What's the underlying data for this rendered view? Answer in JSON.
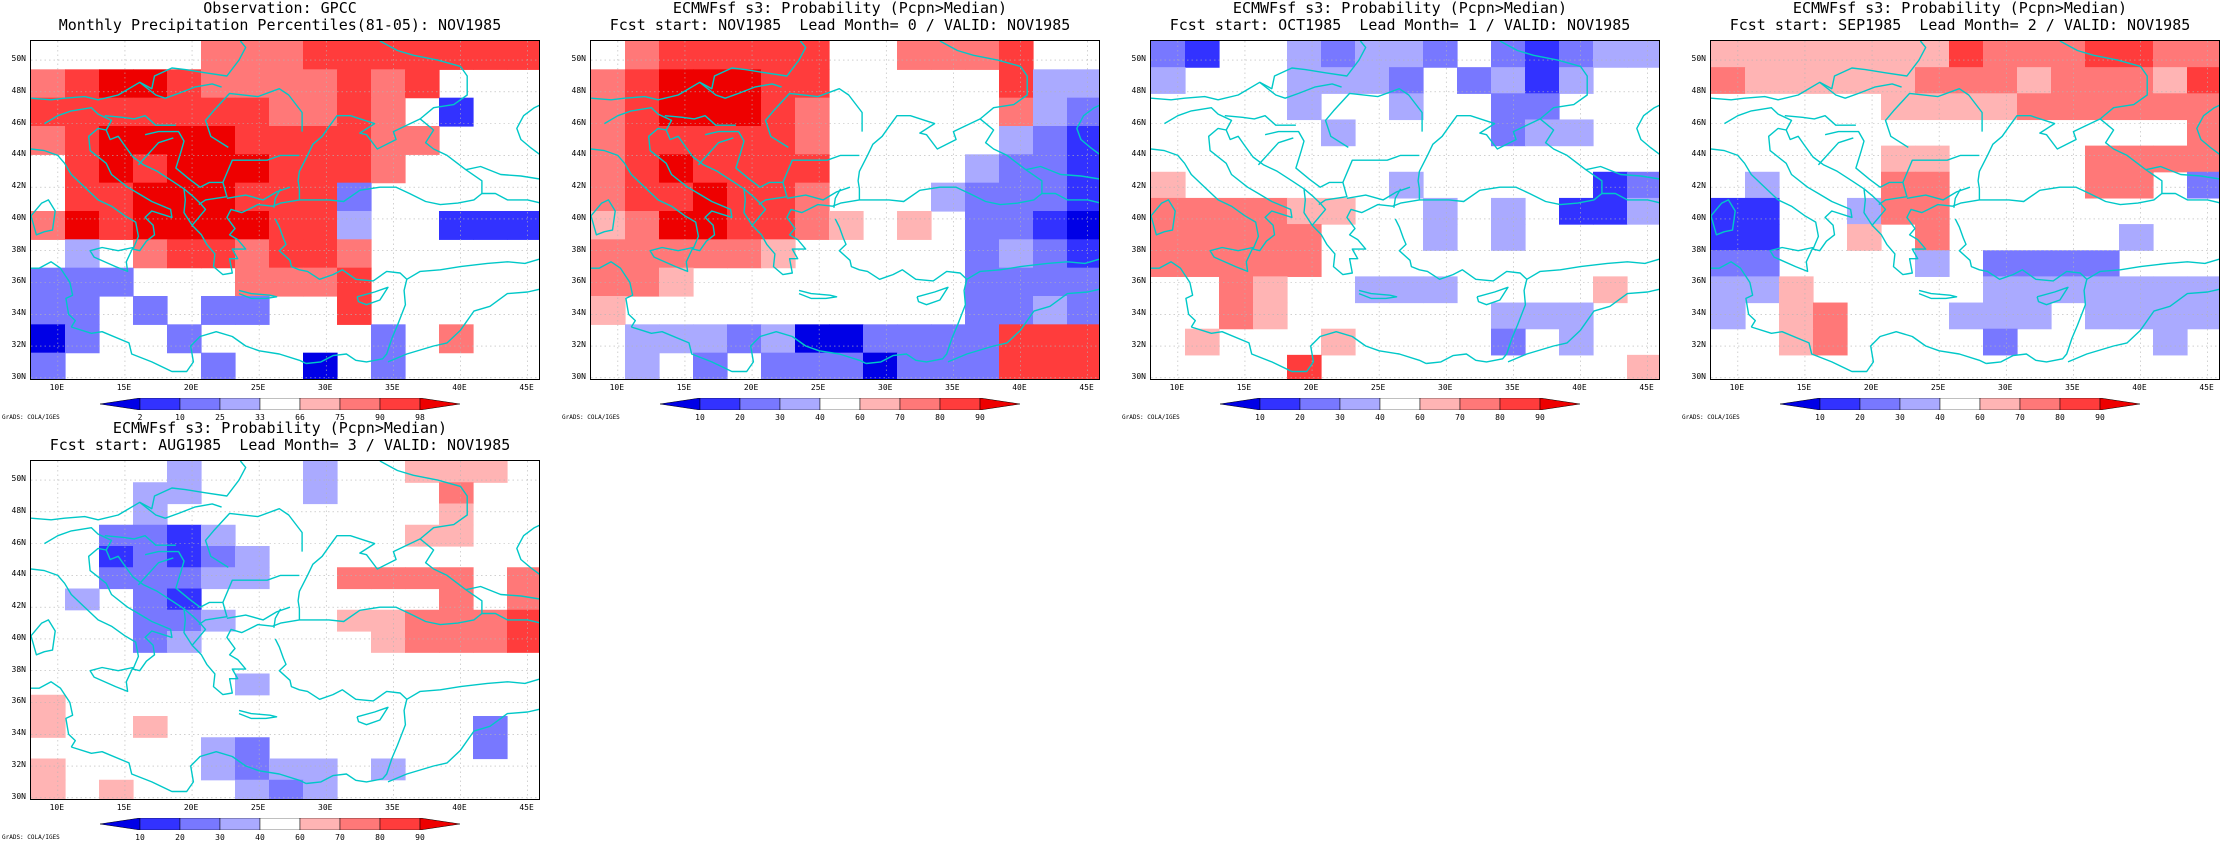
{
  "panels": [
    {
      "title_line1": "Observation: GPCC",
      "title_line2": "Monthly Precipitation Percentiles(81-05): NOV1985",
      "colorbar_labels": [
        "2",
        "10",
        "25",
        "33",
        "66",
        "75",
        "90",
        "98"
      ],
      "grid": [
        [
          0,
          0,
          0,
          0,
          0,
          3,
          3,
          3,
          4,
          4,
          4,
          4,
          4,
          4,
          4
        ],
        [
          3,
          4,
          5,
          5,
          4,
          3,
          3,
          3,
          3,
          4,
          3,
          4,
          0,
          0,
          0
        ],
        [
          4,
          4,
          4,
          4,
          4,
          4,
          4,
          3,
          3,
          4,
          3,
          0,
          -3,
          0,
          0
        ],
        [
          3,
          4,
          5,
          5,
          5,
          5,
          4,
          4,
          4,
          4,
          3,
          3,
          0,
          0,
          0
        ],
        [
          0,
          4,
          5,
          4,
          5,
          5,
          5,
          4,
          4,
          4,
          3,
          0,
          0,
          0,
          0
        ],
        [
          0,
          4,
          4,
          5,
          5,
          5,
          4,
          4,
          4,
          -2,
          0,
          0,
          0,
          0,
          0
        ],
        [
          3,
          5,
          4,
          5,
          5,
          5,
          5,
          4,
          4,
          -1,
          0,
          0,
          -3,
          -3,
          -3
        ],
        [
          0,
          -1,
          0,
          3,
          4,
          4,
          3,
          4,
          4,
          3,
          0,
          0,
          0,
          0,
          0
        ],
        [
          -2,
          -2,
          -2,
          0,
          0,
          0,
          3,
          3,
          3,
          4,
          0,
          0,
          0,
          0,
          0
        ],
        [
          -2,
          -2,
          0,
          -2,
          0,
          -2,
          -2,
          0,
          0,
          4,
          0,
          0,
          0,
          0,
          0
        ],
        [
          -4,
          -2,
          0,
          0,
          -2,
          0,
          0,
          0,
          0,
          0,
          -2,
          0,
          3,
          0,
          0
        ],
        [
          -2,
          0,
          0,
          0,
          0,
          -2,
          0,
          0,
          -4,
          0,
          -2,
          0,
          0,
          0,
          0
        ]
      ]
    },
    {
      "title_line1": "ECMWFsf s3: Probability (Pcpn>Median)",
      "title_line2": "Fcst start: NOV1985  Lead Month= 0 / VALID: NOV1985",
      "colorbar_labels": [
        "10",
        "20",
        "30",
        "40",
        "60",
        "70",
        "80",
        "90"
      ],
      "grid": [
        [
          0,
          3,
          4,
          4,
          4,
          4,
          4,
          0,
          0,
          3,
          3,
          3,
          4,
          0,
          0
        ],
        [
          3,
          4,
          5,
          5,
          5,
          4,
          4,
          0,
          0,
          0,
          0,
          0,
          4,
          -1,
          -1
        ],
        [
          3,
          4,
          5,
          5,
          5,
          4,
          3,
          0,
          0,
          0,
          0,
          0,
          3,
          -1,
          -2
        ],
        [
          3,
          4,
          4,
          4,
          4,
          4,
          3,
          0,
          0,
          0,
          0,
          0,
          -1,
          -2,
          -3
        ],
        [
          3,
          4,
          5,
          4,
          4,
          4,
          4,
          0,
          0,
          0,
          0,
          -1,
          -2,
          -2,
          -3
        ],
        [
          3,
          4,
          4,
          5,
          4,
          4,
          3,
          0,
          0,
          0,
          -1,
          -2,
          -2,
          -2,
          -3
        ],
        [
          2,
          3,
          5,
          5,
          4,
          4,
          3,
          2,
          0,
          2,
          0,
          -2,
          -2,
          -3,
          -4
        ],
        [
          3,
          3,
          3,
          3,
          3,
          2,
          0,
          0,
          0,
          0,
          0,
          -2,
          -1,
          -2,
          -3
        ],
        [
          3,
          3,
          2,
          0,
          0,
          0,
          0,
          0,
          0,
          0,
          0,
          -2,
          -2,
          -2,
          -2
        ],
        [
          2,
          0,
          0,
          0,
          0,
          0,
          0,
          0,
          0,
          0,
          0,
          -2,
          -2,
          -1,
          -2
        ],
        [
          0,
          -1,
          -1,
          -1,
          -2,
          -1,
          -4,
          -4,
          -2,
          -2,
          -2,
          -2,
          4,
          4,
          4
        ],
        [
          0,
          -1,
          0,
          -2,
          0,
          -2,
          -2,
          -2,
          -4,
          -2,
          -2,
          -2,
          4,
          4,
          4
        ]
      ]
    },
    {
      "title_line1": "ECMWFsf s3: Probability (Pcpn>Median)",
      "title_line2": "Fcst start: OCT1985  Lead Month= 1 / VALID: NOV1985",
      "colorbar_labels": [
        "10",
        "20",
        "30",
        "40",
        "60",
        "70",
        "80",
        "90"
      ],
      "grid": [
        [
          -2,
          -3,
          0,
          0,
          -1,
          -2,
          -1,
          -1,
          -2,
          0,
          -2,
          -3,
          -2,
          -1,
          -1
        ],
        [
          -1,
          0,
          0,
          0,
          -1,
          -1,
          -1,
          -2,
          0,
          -2,
          -1,
          -3,
          -1,
          0,
          0
        ],
        [
          0,
          0,
          0,
          0,
          -1,
          0,
          0,
          -1,
          0,
          0,
          -2,
          -2,
          0,
          0,
          0
        ],
        [
          0,
          0,
          0,
          0,
          0,
          -1,
          0,
          0,
          0,
          0,
          -2,
          -1,
          -1,
          0,
          0
        ],
        [
          0,
          0,
          0,
          0,
          0,
          0,
          0,
          0,
          0,
          0,
          0,
          0,
          0,
          0,
          0
        ],
        [
          2,
          0,
          0,
          0,
          0,
          0,
          0,
          -1,
          0,
          0,
          0,
          0,
          0,
          -3,
          -2
        ],
        [
          3,
          3,
          3,
          3,
          2,
          2,
          0,
          0,
          -1,
          0,
          -1,
          0,
          -3,
          -3,
          -1
        ],
        [
          3,
          3,
          3,
          3,
          3,
          0,
          0,
          0,
          -1,
          0,
          -1,
          0,
          0,
          0,
          0
        ],
        [
          3,
          3,
          3,
          3,
          3,
          0,
          0,
          0,
          0,
          0,
          0,
          0,
          0,
          0,
          0
        ],
        [
          0,
          0,
          3,
          2,
          0,
          0,
          -1,
          -1,
          -1,
          0,
          0,
          0,
          0,
          2,
          0
        ],
        [
          0,
          0,
          3,
          2,
          0,
          0,
          0,
          0,
          0,
          0,
          -1,
          -1,
          -1,
          0,
          0
        ],
        [
          0,
          2,
          0,
          0,
          0,
          2,
          0,
          0,
          0,
          0,
          -2,
          0,
          -1,
          0,
          0
        ],
        [
          0,
          0,
          0,
          0,
          4,
          0,
          0,
          0,
          0,
          0,
          0,
          0,
          0,
          0,
          2
        ]
      ]
    },
    {
      "title_line1": "ECMWFsf s3: Probability (Pcpn>Median)",
      "title_line2": "Fcst start: SEP1985  Lead Month= 2 / VALID: NOV1985",
      "colorbar_labels": [
        "10",
        "20",
        "30",
        "40",
        "60",
        "70",
        "80",
        "90"
      ],
      "grid": [
        [
          2,
          2,
          2,
          2,
          2,
          2,
          2,
          4,
          3,
          3,
          3,
          4,
          4,
          3,
          3
        ],
        [
          3,
          2,
          2,
          2,
          2,
          2,
          3,
          3,
          3,
          2,
          3,
          3,
          3,
          2,
          4
        ],
        [
          0,
          0,
          0,
          0,
          0,
          2,
          2,
          2,
          2,
          3,
          3,
          3,
          3,
          3,
          3
        ],
        [
          0,
          0,
          0,
          0,
          0,
          0,
          0,
          0,
          0,
          0,
          0,
          0,
          0,
          0,
          3
        ],
        [
          0,
          0,
          0,
          0,
          0,
          2,
          2,
          0,
          0,
          0,
          0,
          3,
          3,
          3,
          3
        ],
        [
          0,
          -1,
          0,
          0,
          0,
          3,
          3,
          0,
          0,
          0,
          0,
          3,
          3,
          0,
          -2
        ],
        [
          -3,
          -3,
          0,
          0,
          -1,
          3,
          3,
          0,
          0,
          0,
          0,
          0,
          0,
          0,
          0
        ],
        [
          -3,
          -3,
          0,
          0,
          2,
          0,
          3,
          0,
          0,
          0,
          0,
          0,
          -1,
          0,
          0
        ],
        [
          -2,
          -2,
          0,
          0,
          0,
          0,
          -1,
          0,
          -2,
          -2,
          -2,
          -2,
          0,
          0,
          0
        ],
        [
          -1,
          -1,
          2,
          0,
          0,
          0,
          0,
          0,
          -1,
          -1,
          -1,
          -1,
          -1,
          -1,
          -1
        ],
        [
          -1,
          0,
          2,
          3,
          0,
          0,
          0,
          -1,
          -1,
          -1,
          0,
          -1,
          -1,
          -1,
          -1
        ],
        [
          0,
          0,
          2,
          3,
          0,
          0,
          0,
          0,
          -2,
          0,
          0,
          0,
          0,
          -1,
          0
        ],
        [
          0,
          0,
          0,
          0,
          0,
          0,
          0,
          0,
          0,
          0,
          0,
          0,
          0,
          0,
          0
        ]
      ]
    },
    {
      "title_line1": "ECMWFsf s3: Probability (Pcpn>Median)",
      "title_line2": "Fcst start: AUG1985  Lead Month= 3 / VALID: NOV1985",
      "colorbar_labels": [
        "10",
        "20",
        "30",
        "40",
        "60",
        "70",
        "80",
        "90"
      ],
      "grid": [
        [
          0,
          0,
          0,
          0,
          -1,
          0,
          0,
          0,
          -1,
          0,
          0,
          2,
          2,
          2,
          0
        ],
        [
          0,
          0,
          0,
          -1,
          -1,
          0,
          0,
          0,
          -1,
          0,
          0,
          0,
          3,
          0,
          0
        ],
        [
          0,
          0,
          0,
          -1,
          0,
          0,
          0,
          0,
          0,
          0,
          0,
          0,
          2,
          0,
          0
        ],
        [
          0,
          0,
          -2,
          -2,
          -3,
          -1,
          0,
          0,
          0,
          0,
          0,
          2,
          2,
          0,
          0
        ],
        [
          0,
          0,
          -3,
          -2,
          -3,
          -2,
          -1,
          0,
          0,
          0,
          0,
          0,
          0,
          0,
          0
        ],
        [
          0,
          0,
          -2,
          -2,
          -2,
          -1,
          -1,
          0,
          0,
          3,
          3,
          3,
          3,
          0,
          3
        ],
        [
          0,
          -1,
          0,
          -2,
          -3,
          0,
          0,
          0,
          0,
          0,
          0,
          0,
          3,
          0,
          3
        ],
        [
          0,
          0,
          0,
          -2,
          -2,
          -1,
          0,
          0,
          0,
          2,
          2,
          3,
          3,
          3,
          4
        ],
        [
          0,
          0,
          0,
          -2,
          -1,
          0,
          0,
          0,
          0,
          0,
          2,
          3,
          3,
          3,
          4
        ],
        [
          0,
          0,
          0,
          0,
          0,
          0,
          0,
          0,
          0,
          0,
          0,
          0,
          0,
          0,
          0
        ],
        [
          0,
          0,
          0,
          0,
          0,
          0,
          -1,
          0,
          0,
          0,
          0,
          0,
          0,
          0,
          0
        ],
        [
          2,
          0,
          0,
          0,
          0,
          0,
          0,
          0,
          0,
          0,
          0,
          0,
          0,
          0,
          0
        ],
        [
          2,
          0,
          0,
          2,
          0,
          0,
          0,
          0,
          0,
          0,
          0,
          0,
          0,
          -2,
          0
        ],
        [
          0,
          0,
          0,
          0,
          0,
          -1,
          -2,
          0,
          0,
          0,
          0,
          0,
          0,
          -2,
          0
        ],
        [
          2,
          0,
          0,
          0,
          0,
          -1,
          -2,
          -1,
          -1,
          0,
          -1,
          0,
          0,
          0,
          0
        ],
        [
          2,
          0,
          2,
          0,
          0,
          0,
          -1,
          -2,
          -1,
          0,
          0,
          0,
          0,
          0,
          0
        ]
      ]
    }
  ],
  "y_tick_labels": [
    "50N",
    "48N",
    "46N",
    "44N",
    "42N",
    "40N",
    "38N",
    "36N",
    "34N",
    "32N",
    "30N"
  ],
  "x_tick_labels": [
    "10E",
    "15E",
    "20E",
    "25E",
    "30E",
    "35E",
    "40E",
    "45E"
  ],
  "footer_label": "GrADS: COLA/IGES",
  "palette": {
    "-4": "#0000e6",
    "-3": "#3232ff",
    "-2": "#7878ff",
    "-1": "#aaaaff",
    "0": "#ffffff",
    "2": "#ffb4b4",
    "3": "#ff7878",
    "4": "#ff3c3c",
    "5": "#ee0000"
  },
  "colorbar_colors": [
    "#0000e6",
    "#3232ff",
    "#7878ff",
    "#aaaaff",
    "#ffffff",
    "#ffb4b4",
    "#ff7878",
    "#ff3c3c",
    "#ee0000"
  ],
  "coastline_color": "#00c8c8",
  "colors": {
    "background": "#ffffff",
    "frame": "#000000",
    "grid_lines": "#b4b4b4"
  }
}
